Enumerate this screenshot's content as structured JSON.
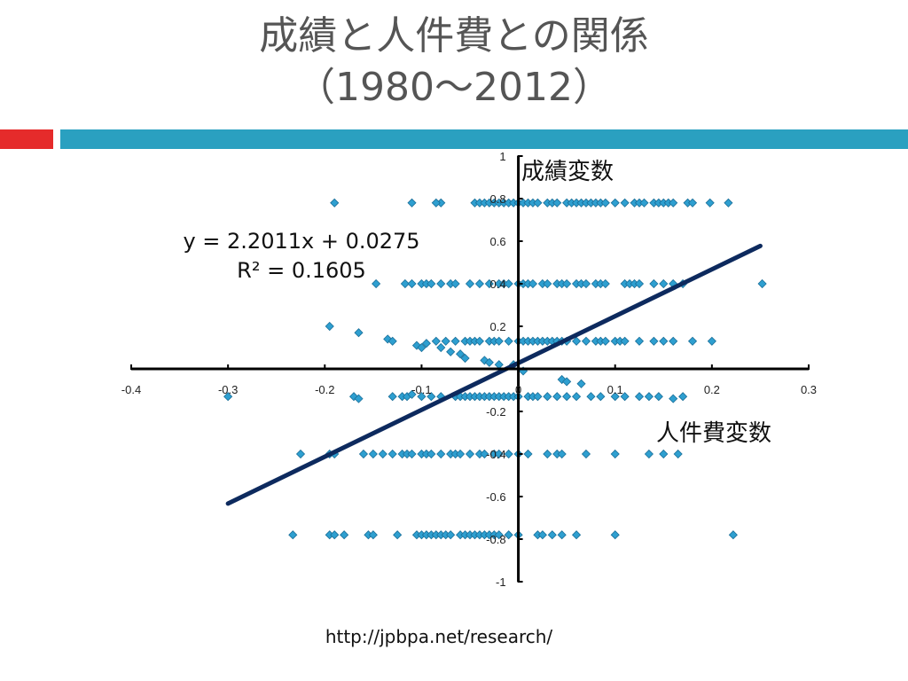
{
  "slide": {
    "title_line1": "成績と人件費との関係",
    "title_line2": "（1980～2012）",
    "source_url": "http://jpbpa.net/research/"
  },
  "colors": {
    "accent_red": "#e52b2b",
    "accent_blue": "#2aa0c0",
    "marker": "#2e9fd0",
    "trendline": "#0d2a5e"
  },
  "chart_data": {
    "type": "scatter",
    "xlabel": "人件費変数",
    "ylabel": "成績変数",
    "xlim": [
      -0.4,
      0.3
    ],
    "ylim": [
      -1,
      1
    ],
    "x_ticks": [
      "-0.4",
      "-0.3",
      "-0.2",
      "-0.1",
      "0",
      "0.1",
      "0.2",
      "0.3"
    ],
    "y_ticks": [
      "-1",
      "-0.8",
      "-0.6",
      "-0.4",
      "-0.2",
      "0",
      "0.2",
      "0.4",
      "0.6",
      "0.8",
      "1"
    ],
    "grid": false,
    "trendline": {
      "type": "linear",
      "slope": 2.2011,
      "intercept": 0.0275,
      "equation": "y = 2.2011x + 0.0275",
      "r_squared": "R² = 0.1605",
      "x_range": [
        -0.3,
        0.25
      ]
    },
    "series": [
      {
        "points": [
          [
            -0.19,
            0.78
          ],
          [
            -0.11,
            0.78
          ],
          [
            -0.08,
            0.78
          ],
          [
            -0.085,
            0.78
          ],
          [
            -0.045,
            0.78
          ],
          [
            -0.04,
            0.78
          ],
          [
            -0.035,
            0.78
          ],
          [
            -0.03,
            0.78
          ],
          [
            -0.025,
            0.78
          ],
          [
            -0.02,
            0.78
          ],
          [
            -0.015,
            0.78
          ],
          [
            -0.01,
            0.78
          ],
          [
            -0.005,
            0.78
          ],
          [
            0,
            0.78
          ],
          [
            0.005,
            0.78
          ],
          [
            0.01,
            0.78
          ],
          [
            0.015,
            0.78
          ],
          [
            0.02,
            0.78
          ],
          [
            0.03,
            0.78
          ],
          [
            0.035,
            0.78
          ],
          [
            0.04,
            0.78
          ],
          [
            0.05,
            0.78
          ],
          [
            0.055,
            0.78
          ],
          [
            0.06,
            0.78
          ],
          [
            0.065,
            0.78
          ],
          [
            0.07,
            0.78
          ],
          [
            0.075,
            0.78
          ],
          [
            0.08,
            0.78
          ],
          [
            0.085,
            0.78
          ],
          [
            0.09,
            0.78
          ],
          [
            0.1,
            0.78
          ],
          [
            0.11,
            0.78
          ],
          [
            0.12,
            0.78
          ],
          [
            0.125,
            0.78
          ],
          [
            0.13,
            0.78
          ],
          [
            0.14,
            0.78
          ],
          [
            0.145,
            0.78
          ],
          [
            0.15,
            0.78
          ],
          [
            0.155,
            0.78
          ],
          [
            0.16,
            0.78
          ],
          [
            0.175,
            0.78
          ],
          [
            0.18,
            0.78
          ],
          [
            0.198,
            0.78
          ],
          [
            0.217,
            0.78
          ],
          [
            -0.147,
            0.4
          ],
          [
            -0.117,
            0.4
          ],
          [
            -0.11,
            0.4
          ],
          [
            -0.1,
            0.4
          ],
          [
            -0.095,
            0.4
          ],
          [
            -0.09,
            0.4
          ],
          [
            -0.08,
            0.4
          ],
          [
            -0.07,
            0.4
          ],
          [
            -0.065,
            0.4
          ],
          [
            -0.05,
            0.4
          ],
          [
            -0.04,
            0.4
          ],
          [
            -0.03,
            0.4
          ],
          [
            -0.02,
            0.4
          ],
          [
            -0.015,
            0.4
          ],
          [
            -0.01,
            0.4
          ],
          [
            0,
            0.4
          ],
          [
            0.005,
            0.4
          ],
          [
            0.01,
            0.4
          ],
          [
            0.015,
            0.4
          ],
          [
            0.025,
            0.4
          ],
          [
            0.03,
            0.4
          ],
          [
            0.04,
            0.4
          ],
          [
            0.045,
            0.4
          ],
          [
            0.05,
            0.4
          ],
          [
            0.06,
            0.4
          ],
          [
            0.065,
            0.4
          ],
          [
            0.07,
            0.4
          ],
          [
            0.08,
            0.4
          ],
          [
            0.085,
            0.4
          ],
          [
            0.09,
            0.4
          ],
          [
            0.11,
            0.4
          ],
          [
            0.115,
            0.4
          ],
          [
            0.12,
            0.4
          ],
          [
            0.125,
            0.4
          ],
          [
            0.14,
            0.4
          ],
          [
            0.15,
            0.4
          ],
          [
            0.16,
            0.4
          ],
          [
            0.17,
            0.4
          ],
          [
            0.252,
            0.4
          ],
          [
            -0.195,
            0.2
          ],
          [
            -0.165,
            0.17
          ],
          [
            -0.135,
            0.14
          ],
          [
            -0.13,
            0.13
          ],
          [
            -0.105,
            0.11
          ],
          [
            -0.1,
            0.1
          ],
          [
            -0.095,
            0.12
          ],
          [
            -0.085,
            0.13
          ],
          [
            -0.08,
            0.1
          ],
          [
            -0.075,
            0.13
          ],
          [
            -0.07,
            0.08
          ],
          [
            -0.065,
            0.13
          ],
          [
            -0.06,
            0.07
          ],
          [
            -0.055,
            0.13
          ],
          [
            -0.05,
            0.13
          ],
          [
            -0.045,
            0.13
          ],
          [
            -0.04,
            0.13
          ],
          [
            -0.03,
            0.13
          ],
          [
            -0.025,
            0.13
          ],
          [
            -0.02,
            0.13
          ],
          [
            -0.01,
            0.13
          ],
          [
            0,
            0.13
          ],
          [
            0.005,
            0.13
          ],
          [
            0.01,
            0.13
          ],
          [
            0.015,
            0.13
          ],
          [
            0.02,
            0.13
          ],
          [
            0.025,
            0.13
          ],
          [
            0.03,
            0.13
          ],
          [
            0.035,
            0.13
          ],
          [
            0.04,
            0.13
          ],
          [
            0.045,
            0.13
          ],
          [
            0.05,
            0.13
          ],
          [
            0.06,
            0.13
          ],
          [
            0.07,
            0.13
          ],
          [
            0.08,
            0.13
          ],
          [
            0.085,
            0.13
          ],
          [
            0.09,
            0.13
          ],
          [
            0.1,
            0.13
          ],
          [
            0.105,
            0.13
          ],
          [
            0.11,
            0.13
          ],
          [
            0.125,
            0.13
          ],
          [
            0.14,
            0.13
          ],
          [
            0.15,
            0.13
          ],
          [
            0.16,
            0.13
          ],
          [
            0.18,
            0.13
          ],
          [
            0.2,
            0.13
          ],
          [
            -0.055,
            0.05
          ],
          [
            -0.035,
            0.04
          ],
          [
            -0.03,
            0.03
          ],
          [
            -0.02,
            0.02
          ],
          [
            -0.005,
            0.02
          ],
          [
            0.005,
            -0.01
          ],
          [
            0.045,
            -0.05
          ],
          [
            0.05,
            -0.06
          ],
          [
            0.065,
            -0.07
          ],
          [
            -0.3,
            -0.13
          ],
          [
            -0.17,
            -0.13
          ],
          [
            -0.165,
            -0.14
          ],
          [
            -0.13,
            -0.13
          ],
          [
            -0.12,
            -0.13
          ],
          [
            -0.115,
            -0.13
          ],
          [
            -0.11,
            -0.12
          ],
          [
            -0.1,
            -0.13
          ],
          [
            -0.09,
            -0.13
          ],
          [
            -0.08,
            -0.13
          ],
          [
            -0.065,
            -0.13
          ],
          [
            -0.06,
            -0.13
          ],
          [
            -0.055,
            -0.13
          ],
          [
            -0.05,
            -0.13
          ],
          [
            -0.045,
            -0.13
          ],
          [
            -0.04,
            -0.13
          ],
          [
            -0.035,
            -0.13
          ],
          [
            -0.03,
            -0.13
          ],
          [
            -0.025,
            -0.13
          ],
          [
            -0.02,
            -0.13
          ],
          [
            -0.015,
            -0.13
          ],
          [
            -0.01,
            -0.13
          ],
          [
            -0.005,
            -0.13
          ],
          [
            0,
            -0.13
          ],
          [
            0.01,
            -0.13
          ],
          [
            0.015,
            -0.13
          ],
          [
            0.02,
            -0.13
          ],
          [
            0.03,
            -0.13
          ],
          [
            0.04,
            -0.13
          ],
          [
            0.05,
            -0.13
          ],
          [
            0.06,
            -0.13
          ],
          [
            0.075,
            -0.13
          ],
          [
            0.085,
            -0.13
          ],
          [
            0.1,
            -0.13
          ],
          [
            0.11,
            -0.13
          ],
          [
            0.125,
            -0.13
          ],
          [
            0.135,
            -0.13
          ],
          [
            0.145,
            -0.13
          ],
          [
            0.16,
            -0.14
          ],
          [
            0.17,
            -0.13
          ],
          [
            -0.225,
            -0.4
          ],
          [
            -0.195,
            -0.4
          ],
          [
            -0.19,
            -0.4
          ],
          [
            -0.16,
            -0.4
          ],
          [
            -0.15,
            -0.4
          ],
          [
            -0.14,
            -0.4
          ],
          [
            -0.13,
            -0.4
          ],
          [
            -0.12,
            -0.4
          ],
          [
            -0.115,
            -0.4
          ],
          [
            -0.11,
            -0.4
          ],
          [
            -0.1,
            -0.4
          ],
          [
            -0.095,
            -0.4
          ],
          [
            -0.09,
            -0.4
          ],
          [
            -0.08,
            -0.4
          ],
          [
            -0.07,
            -0.4
          ],
          [
            -0.065,
            -0.4
          ],
          [
            -0.06,
            -0.4
          ],
          [
            -0.05,
            -0.4
          ],
          [
            -0.04,
            -0.4
          ],
          [
            -0.035,
            -0.4
          ],
          [
            -0.025,
            -0.4
          ],
          [
            -0.02,
            -0.4
          ],
          [
            -0.01,
            -0.4
          ],
          [
            0,
            -0.4
          ],
          [
            0.01,
            -0.4
          ],
          [
            0.03,
            -0.4
          ],
          [
            0.04,
            -0.4
          ],
          [
            0.045,
            -0.4
          ],
          [
            0.07,
            -0.4
          ],
          [
            0.1,
            -0.4
          ],
          [
            0.135,
            -0.4
          ],
          [
            0.15,
            -0.4
          ],
          [
            0.165,
            -0.4
          ],
          [
            -0.233,
            -0.78
          ],
          [
            -0.195,
            -0.78
          ],
          [
            -0.19,
            -0.78
          ],
          [
            -0.18,
            -0.78
          ],
          [
            -0.155,
            -0.78
          ],
          [
            -0.15,
            -0.78
          ],
          [
            -0.125,
            -0.78
          ],
          [
            -0.105,
            -0.78
          ],
          [
            -0.1,
            -0.78
          ],
          [
            -0.095,
            -0.78
          ],
          [
            -0.09,
            -0.78
          ],
          [
            -0.085,
            -0.78
          ],
          [
            -0.08,
            -0.78
          ],
          [
            -0.075,
            -0.78
          ],
          [
            -0.07,
            -0.78
          ],
          [
            -0.06,
            -0.78
          ],
          [
            -0.055,
            -0.78
          ],
          [
            -0.05,
            -0.78
          ],
          [
            -0.045,
            -0.78
          ],
          [
            -0.04,
            -0.78
          ],
          [
            -0.035,
            -0.78
          ],
          [
            -0.03,
            -0.78
          ],
          [
            -0.025,
            -0.78
          ],
          [
            -0.02,
            -0.78
          ],
          [
            -0.01,
            -0.78
          ],
          [
            0,
            -0.78
          ],
          [
            0.02,
            -0.78
          ],
          [
            0.025,
            -0.78
          ],
          [
            0.035,
            -0.78
          ],
          [
            0.045,
            -0.78
          ],
          [
            0.06,
            -0.78
          ],
          [
            0.1,
            -0.78
          ],
          [
            0.222,
            -0.78
          ]
        ]
      }
    ]
  }
}
